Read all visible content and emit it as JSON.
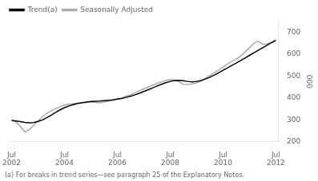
{
  "chart_data": {
    "type": "line",
    "ylabel": "000",
    "footnote": "(a) For breaks in trend series—see paragraph 25 of the Explanatory Notes.",
    "legend": "upper left",
    "grid": false,
    "xlim": [
      2002.42,
      2012.58
    ],
    "xticks": [
      {
        "value": 2002.5,
        "label": "Jul\n2002"
      },
      {
        "value": 2004.5,
        "label": "Jul\n2004"
      },
      {
        "value": 2006.5,
        "label": "Jul\n2006"
      },
      {
        "value": 2008.5,
        "label": "Jul\n2008"
      },
      {
        "value": 2010.5,
        "label": "Jul\n2010"
      },
      {
        "value": 2012.5,
        "label": "Jul\n2012"
      }
    ],
    "ylim": [
      200,
      750
    ],
    "yticks": [
      200,
      300,
      400,
      500,
      600,
      700
    ],
    "x": [
      2002.5,
      2002.67,
      2002.83,
      2003.0,
      2003.17,
      2003.33,
      2003.5,
      2003.67,
      2003.83,
      2004.0,
      2004.17,
      2004.33,
      2004.5,
      2004.67,
      2004.83,
      2005.0,
      2005.17,
      2005.33,
      2005.5,
      2005.67,
      2005.83,
      2006.0,
      2006.17,
      2006.33,
      2006.5,
      2006.67,
      2006.83,
      2007.0,
      2007.17,
      2007.33,
      2007.5,
      2007.67,
      2007.83,
      2008.0,
      2008.17,
      2008.33,
      2008.5,
      2008.67,
      2008.83,
      2009.0,
      2009.17,
      2009.33,
      2009.5,
      2009.67,
      2009.83,
      2010.0,
      2010.17,
      2010.33,
      2010.5,
      2010.67,
      2010.83,
      2011.0,
      2011.17,
      2011.33,
      2011.5,
      2011.67,
      2011.83,
      2012.0,
      2012.17,
      2012.33,
      2012.5
    ],
    "series": [
      {
        "name": "Trend(a)",
        "color": "#000000",
        "values": [
          298,
          295,
          292,
          289,
          287,
          288,
          293,
          300,
          310,
          322,
          335,
          346,
          356,
          364,
          370,
          375,
          379,
          382,
          384,
          385,
          386,
          388,
          390,
          392,
          395,
          398,
          403,
          408,
          415,
          422,
          430,
          438,
          446,
          455,
          463,
          470,
          476,
          480,
          481,
          479,
          476,
          474,
          476,
          480,
          487,
          495,
          505,
          515,
          527,
          538,
          549,
          560,
          572,
          583,
          595,
          607,
          618,
          630,
          642,
          653,
          663
        ]
      },
      {
        "name": "Seasonally Adjusted",
        "color": "#aaaaaa",
        "values": [
          300,
          290,
          270,
          245,
          255,
          275,
          295,
          315,
          330,
          342,
          352,
          360,
          368,
          372,
          374,
          376,
          378,
          380,
          382,
          380,
          378,
          382,
          386,
          390,
          396,
          401,
          408,
          415,
          424,
          433,
          442,
          450,
          458,
          467,
          474,
          480,
          485,
          483,
          475,
          463,
          462,
          465,
          470,
          478,
          490,
          503,
          516,
          528,
          542,
          555,
          567,
          578,
          592,
          610,
          630,
          650,
          660,
          645,
          648,
          655,
          668
        ]
      }
    ]
  }
}
